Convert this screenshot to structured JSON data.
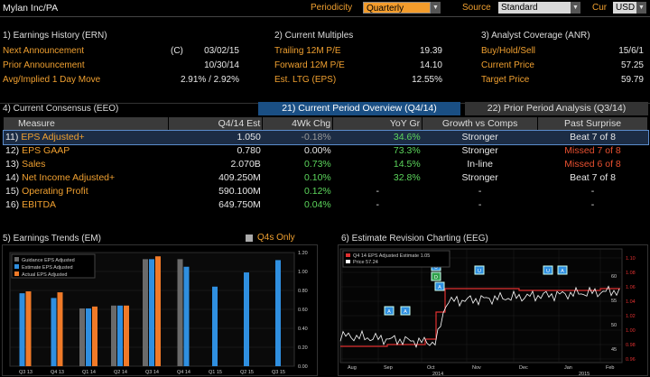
{
  "title": "Mylan Inc/PA",
  "periodicity": {
    "label": "Periodicity",
    "value": "Quarterly"
  },
  "source": {
    "label": "Source",
    "value": "Standard"
  },
  "currency": {
    "label": "Cur",
    "value": "USD"
  },
  "ern": {
    "title": "1) Earnings History (ERN)",
    "next_label": "Next Announcement",
    "next_flag": "(C)",
    "next_value": "03/02/15",
    "prior_label": "Prior Announcement",
    "prior_value": "10/30/14",
    "avg_label": "Avg/Implied 1 Day Move",
    "avg_value": "2.91% / 2.92%"
  },
  "multiples": {
    "title": "2) Current Multiples",
    "trailing_label": "Trailing 12M P/E",
    "trailing_value": "19.39",
    "forward_label": "Forward 12M P/E",
    "forward_value": "14.10",
    "ltg_label": "Est. LTG (EPS)",
    "ltg_value": "12.55%"
  },
  "analyst": {
    "title": "3) Analyst Coverage (ANR)",
    "bhs_label": "Buy/Hold/Sell",
    "bhs_value": "15/6/1",
    "price_label": "Current Price",
    "price_value": "57.25",
    "target_label": "Target Price",
    "target_value": "59.79"
  },
  "consensus": {
    "title": "4) Current Consensus (EEO)",
    "tab1": "21) Current Period Overview (Q4/14)",
    "tab2": "22) Prior Period Analysis (Q3/14)",
    "headers": [
      "Measure",
      "Q4/14 Est",
      "4Wk Chg",
      "YoY Gr",
      "Growth vs Comps",
      "Past Surprise"
    ],
    "rows": [
      {
        "num": "11)",
        "measure": "EPS Adjusted+",
        "est": "1.050",
        "chg": "-0.18%",
        "yoy": "34.6%",
        "growth": "Stronger",
        "surprise": "Beat 7 of 8"
      },
      {
        "num": "12)",
        "measure": "EPS GAAP",
        "est": "0.780",
        "chg": "0.00%",
        "yoy": "73.3%",
        "growth": "Stronger",
        "surprise": "Missed 7 of 8"
      },
      {
        "num": "13)",
        "measure": "Sales",
        "est": "2.070B",
        "chg": "0.73%",
        "yoy": "14.5%",
        "growth": "In-line",
        "surprise": "Missed 6 of 8"
      },
      {
        "num": "14)",
        "measure": "Net Income Adjusted+",
        "est": "409.250M",
        "chg": "0.10%",
        "yoy": "32.8%",
        "growth": "Stronger",
        "surprise": "Beat 7 of 8"
      },
      {
        "num": "15)",
        "measure": "Operating Profit",
        "est": "590.100M",
        "chg": "0.12%",
        "yoy": "-",
        "growth": "-",
        "surprise": "-"
      },
      {
        "num": "16)",
        "measure": "EBITDA",
        "est": "649.750M",
        "chg": "0.04%",
        "yoy": "-",
        "growth": "-",
        "surprise": "-"
      }
    ]
  },
  "trends": {
    "title": "5) Earnings Trends (EM)",
    "q4s_label": "Q4s Only",
    "chart_data": {
      "type": "bar",
      "categories": [
        "Q3 13",
        "Q4 13",
        "Q1 14",
        "Q2 14",
        "Q3 14",
        "Q4 14",
        "Q1 15",
        "Q2 15",
        "Q3 15"
      ],
      "series": [
        {
          "name": "Guidance EPS Adjusted",
          "color": "#6a6a6a",
          "values": [
            null,
            null,
            0.61,
            0.64,
            1.13,
            1.13,
            null,
            null,
            null
          ]
        },
        {
          "name": "Estimate EPS Adjusted",
          "color": "#2f8fe0",
          "values": [
            0.77,
            0.72,
            0.61,
            0.64,
            1.13,
            1.05,
            0.84,
            0.99,
            1.12
          ]
        },
        {
          "name": "Actual EPS Adjusted",
          "color": "#f07a28",
          "values": [
            0.79,
            0.78,
            0.63,
            0.64,
            1.16,
            null,
            null,
            null,
            null
          ]
        }
      ],
      "ylim": [
        0,
        1.2
      ],
      "yticks": [
        "1.20",
        "1.00",
        "0.80",
        "0.60",
        "0.40",
        "0.20",
        "0.00"
      ]
    }
  },
  "revisions": {
    "title": "6) Estimate Revision Charting (EEG)",
    "chart_data": {
      "type": "line",
      "x_labels": [
        "Aug",
        "Sep",
        "Oct",
        "Nov",
        "Dec",
        "Jan",
        "Feb"
      ],
      "year_labels": [
        "2014",
        "2015"
      ],
      "series": [
        {
          "name": "Q4 14 EPS Adjusted Estimate",
          "last": "1.05",
          "color": "#e03030",
          "axis": "right"
        },
        {
          "name": "Price",
          "last": "57.24",
          "color": "#ffffff",
          "axis": "left"
        }
      ],
      "left_ticks": [
        "60",
        "55",
        "50",
        "45"
      ],
      "right_ticks": [
        "1.10",
        "1.08",
        "1.06",
        "1.04",
        "1.02",
        "1.00",
        "0.98",
        "0.96"
      ],
      "markers": [
        "A",
        "A",
        "U",
        "D",
        "U",
        "U",
        "A",
        "A"
      ]
    }
  }
}
